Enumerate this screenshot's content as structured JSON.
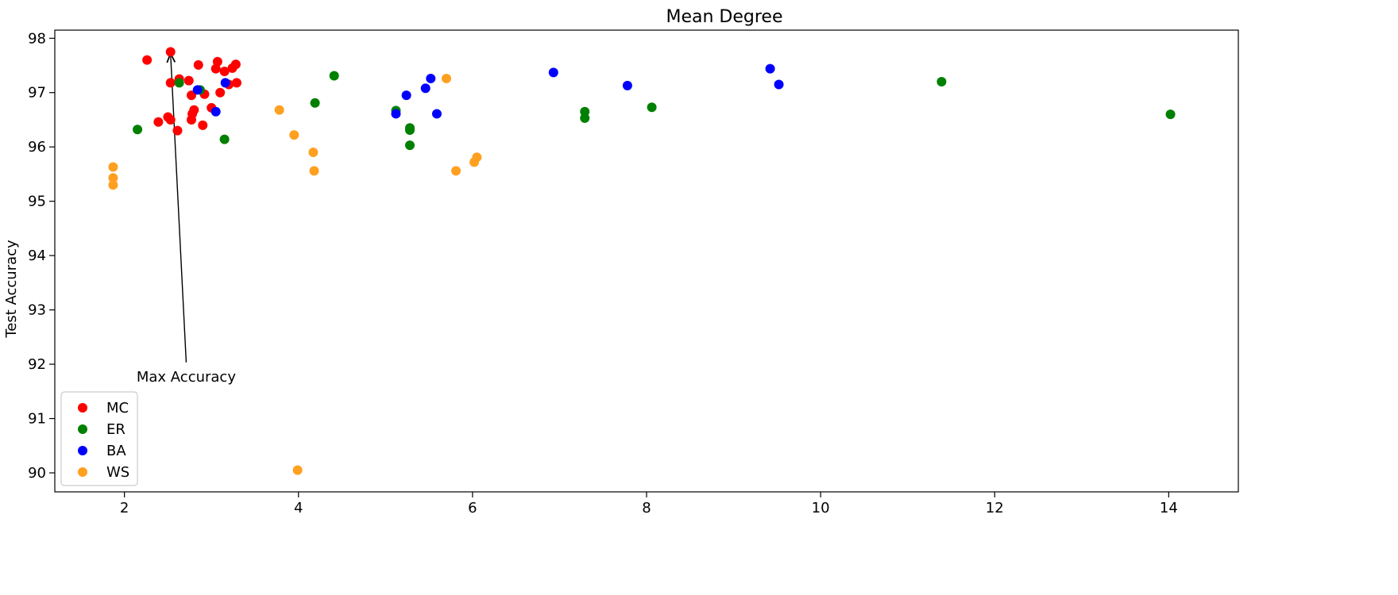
{
  "chart_data": {
    "type": "scatter",
    "title": "Mean Degree",
    "xlabel": "",
    "ylabel": "Test Accuracy",
    "xlim": [
      1.2,
      14.8
    ],
    "ylim": [
      89.65,
      98.15
    ],
    "xticks": [
      2,
      4,
      6,
      8,
      10,
      12,
      14
    ],
    "yticks": [
      90,
      91,
      92,
      93,
      94,
      95,
      96,
      97,
      98
    ],
    "grid": false,
    "legend_position": "lower-left",
    "series": [
      {
        "name": "MC",
        "color": "#ff0000",
        "points": [
          [
            2.26,
            97.6
          ],
          [
            2.53,
            97.75
          ],
          [
            2.85,
            97.51
          ],
          [
            3.07,
            97.57
          ],
          [
            3.05,
            97.44
          ],
          [
            3.15,
            97.39
          ],
          [
            3.24,
            97.45
          ],
          [
            3.28,
            97.52
          ],
          [
            2.53,
            97.18
          ],
          [
            2.63,
            97.25
          ],
          [
            2.74,
            97.22
          ],
          [
            3.29,
            97.18
          ],
          [
            3.2,
            97.15
          ],
          [
            2.77,
            96.95
          ],
          [
            2.92,
            96.97
          ],
          [
            3.1,
            97.0
          ],
          [
            2.8,
            96.68
          ],
          [
            2.78,
            96.61
          ],
          [
            3.0,
            96.72
          ],
          [
            2.77,
            96.5
          ],
          [
            2.5,
            96.55
          ],
          [
            2.53,
            96.5
          ],
          [
            2.39,
            96.46
          ],
          [
            2.9,
            96.4
          ],
          [
            2.61,
            96.3
          ]
        ]
      },
      {
        "name": "ER",
        "color": "#008000",
        "points": [
          [
            2.15,
            96.32
          ],
          [
            2.63,
            97.18
          ],
          [
            2.87,
            97.05
          ],
          [
            3.15,
            96.14
          ],
          [
            4.19,
            96.81
          ],
          [
            4.41,
            97.31
          ],
          [
            5.12,
            96.67
          ],
          [
            5.28,
            96.35
          ],
          [
            5.28,
            96.31
          ],
          [
            5.28,
            96.03
          ],
          [
            7.29,
            96.65
          ],
          [
            7.29,
            96.53
          ],
          [
            8.06,
            96.73
          ],
          [
            11.39,
            97.2
          ],
          [
            14.02,
            96.6
          ]
        ]
      },
      {
        "name": "BA",
        "color": "#0000ff",
        "points": [
          [
            2.84,
            97.05
          ],
          [
            3.16,
            97.18
          ],
          [
            3.05,
            96.65
          ],
          [
            5.12,
            96.61
          ],
          [
            5.24,
            96.95
          ],
          [
            5.46,
            97.08
          ],
          [
            5.52,
            97.26
          ],
          [
            5.59,
            96.61
          ],
          [
            6.93,
            97.37
          ],
          [
            7.78,
            97.13
          ],
          [
            9.42,
            97.44
          ],
          [
            9.52,
            97.15
          ]
        ]
      },
      {
        "name": "WS",
        "color": "#ffa020",
        "points": [
          [
            1.87,
            95.63
          ],
          [
            1.87,
            95.43
          ],
          [
            1.87,
            95.3
          ],
          [
            3.78,
            96.68
          ],
          [
            3.95,
            96.22
          ],
          [
            4.17,
            95.9
          ],
          [
            4.18,
            95.56
          ],
          [
            3.99,
            90.05
          ],
          [
            5.7,
            97.26
          ],
          [
            5.81,
            95.56
          ],
          [
            6.02,
            95.72
          ],
          [
            6.05,
            95.81
          ]
        ]
      }
    ],
    "annotations": [
      {
        "text": "Max Accuracy",
        "target": [
          2.53,
          97.75
        ],
        "text_anchor_point": [
          2.71,
          91.8
        ]
      }
    ]
  }
}
